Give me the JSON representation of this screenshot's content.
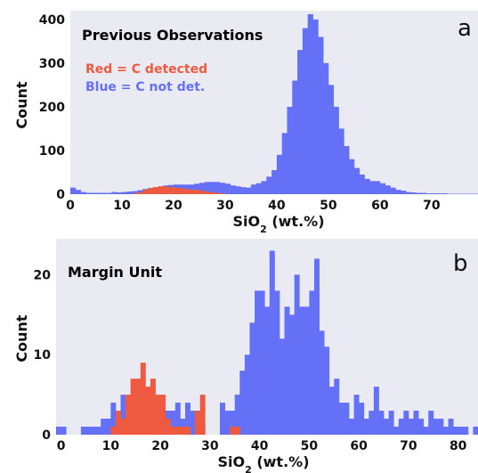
{
  "colors": {
    "background": "#eaeaf2",
    "red": "#ee5a40",
    "blue": "#6470f5"
  },
  "chart_data": [
    {
      "panel": "a",
      "type": "bar",
      "title": "Previous Observations",
      "legend": [
        "Red = C detected",
        "Blue = C not det."
      ],
      "legend_position": "top-left",
      "xlabel_main": "SiO",
      "xlabel_sub": "2",
      "xlabel_tail": " (wt.%)",
      "ylabel": "Count",
      "xlim": [
        0,
        79
      ],
      "ylim": [
        0,
        420
      ],
      "xticks": [
        0,
        10,
        20,
        30,
        40,
        50,
        60,
        70
      ],
      "yticks": [
        0,
        100,
        200,
        300,
        400
      ],
      "bin_width": 1,
      "bin_start": 0,
      "series": [
        {
          "name": "C not det.",
          "color_key": "blue",
          "values": [
            15,
            10,
            5,
            3,
            3,
            3,
            3,
            3,
            5,
            4,
            5,
            6,
            7,
            9,
            12,
            14,
            16,
            18,
            20,
            21,
            22,
            22,
            22,
            22,
            24,
            26,
            28,
            28,
            28,
            26,
            24,
            20,
            18,
            16,
            15,
            22,
            25,
            30,
            40,
            55,
            90,
            140,
            200,
            260,
            330,
            380,
            412,
            400,
            360,
            300,
            250,
            200,
            150,
            110,
            80,
            60,
            45,
            35,
            30,
            30,
            25,
            20,
            15,
            10,
            8,
            5,
            4,
            3,
            3,
            2,
            2,
            2,
            2,
            1,
            1,
            1,
            1,
            1,
            1
          ]
        },
        {
          "name": "C detected",
          "color_key": "red",
          "values": [
            0,
            0,
            0,
            0,
            0,
            0,
            0,
            0,
            0,
            0,
            0,
            0,
            2,
            4,
            10,
            14,
            16,
            18,
            18,
            16,
            15,
            14,
            12,
            10,
            10,
            8,
            6,
            4,
            3,
            2,
            0,
            0,
            0,
            0,
            0,
            0,
            0,
            0,
            0,
            0,
            0,
            0,
            0,
            0,
            0,
            0,
            0,
            0,
            0,
            0,
            0,
            0,
            0,
            0,
            0,
            0,
            0,
            0,
            0,
            0,
            0,
            0,
            0,
            0,
            0,
            0,
            0,
            0,
            0,
            0,
            0,
            0,
            0,
            0,
            0,
            0,
            0,
            0,
            0
          ]
        }
      ]
    },
    {
      "panel": "b",
      "type": "bar",
      "title": "Margin Unit",
      "xlabel_main": "SiO",
      "xlabel_sub": "2",
      "xlabel_tail": " (wt.%)",
      "ylabel": "Count",
      "xlim": [
        -1,
        84
      ],
      "ylim": [
        0,
        24.5
      ],
      "xticks": [
        0,
        10,
        20,
        30,
        40,
        50,
        60,
        70,
        80
      ],
      "yticks": [
        0,
        10,
        20
      ],
      "bin_width": 1,
      "bin_start": -1,
      "series": [
        {
          "name": "C not det.",
          "color_key": "blue",
          "values": [
            1,
            1,
            0,
            0,
            0,
            1,
            1,
            1,
            1,
            2,
            2,
            4,
            2,
            5,
            4,
            2,
            5,
            4,
            2,
            3,
            1,
            1,
            3,
            3,
            4,
            2,
            4,
            3,
            3,
            1,
            0,
            0,
            0,
            4,
            3,
            3,
            5,
            8,
            10,
            14,
            18,
            18,
            16,
            23,
            18,
            12,
            16,
            15,
            20,
            16,
            16,
            18,
            22,
            13,
            11,
            6,
            7,
            4,
            4,
            2,
            5,
            4,
            2,
            3,
            6,
            3,
            2,
            3,
            1,
            2,
            3,
            2,
            3,
            2,
            1,
            3,
            2,
            2,
            1,
            2,
            1,
            1,
            1,
            0,
            1
          ]
        },
        {
          "name": "C detected",
          "color_key": "red",
          "values": [
            0,
            0,
            0,
            0,
            0,
            0,
            0,
            0,
            0,
            0,
            0,
            1,
            3,
            2,
            5,
            7,
            7,
            9,
            6,
            7,
            5,
            5,
            2,
            1,
            1,
            1,
            1,
            0,
            3,
            5,
            0,
            0,
            0,
            0,
            0,
            1,
            1,
            0,
            0,
            0,
            0,
            0,
            0,
            0,
            0,
            0,
            0,
            0,
            0,
            0,
            0,
            0,
            0,
            0,
            0,
            0,
            0,
            0,
            0,
            0,
            0,
            0,
            0,
            0,
            0,
            0,
            0,
            0,
            0,
            0,
            0,
            0,
            0,
            0,
            0,
            0,
            0,
            0,
            0,
            0,
            0,
            0,
            0,
            0,
            0
          ]
        }
      ]
    }
  ]
}
